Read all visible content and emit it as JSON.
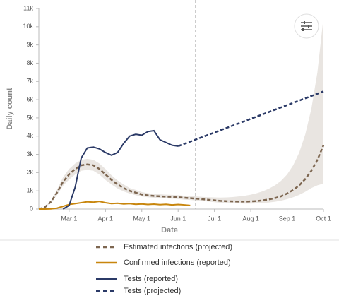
{
  "chart_data": {
    "type": "line",
    "x_label": "Date",
    "y_label": "Daily count",
    "categories": [
      null,
      null,
      null,
      null,
      null,
      "Mar 1",
      null,
      null,
      null,
      null,
      null,
      "Apr 1",
      null,
      null,
      null,
      null,
      null,
      "May 1",
      null,
      null,
      null,
      null,
      null,
      "Jun 1",
      null,
      null,
      null,
      null,
      null,
      "Jul 1",
      null,
      null,
      null,
      null,
      null,
      "Aug 1",
      null,
      null,
      null,
      null,
      null,
      "Sep 1",
      null,
      null,
      null,
      null,
      null,
      "Oct 1"
    ],
    "ylim": [
      0,
      11000
    ],
    "yticks": [
      0,
      {
        "value": 1000,
        "label": "1k"
      },
      {
        "value": 2000,
        "label": "2k"
      },
      {
        "value": 3000,
        "label": "3k"
      },
      {
        "value": 4000,
        "label": "4k"
      },
      {
        "value": 5000,
        "label": "5k"
      },
      {
        "value": 6000,
        "label": "6k"
      },
      {
        "value": 7000,
        "label": "7k"
      },
      {
        "value": 8000,
        "label": "8k"
      },
      {
        "value": 9000,
        "label": "9k"
      },
      {
        "value": 10000,
        "label": "10k"
      },
      {
        "value": 11000,
        "label": "11k"
      }
    ],
    "band": {
      "color": "#e9e5e1",
      "lower": [
        0,
        80,
        340,
        770,
        1280,
        1620,
        1900,
        2100,
        2150,
        2100,
        1900,
        1600,
        1350,
        1130,
        970,
        850,
        760,
        690,
        650,
        620,
        600,
        580,
        570,
        550,
        520,
        500,
        470,
        440,
        410,
        380,
        350,
        330,
        320,
        310,
        300,
        300,
        310,
        330,
        360,
        400,
        460,
        540,
        650,
        780,
        950,
        1150,
        1300,
        1400
      ],
      "upper": [
        0,
        120,
        460,
        1050,
        1750,
        2200,
        2500,
        2700,
        2750,
        2700,
        2500,
        2200,
        1850,
        1570,
        1350,
        1150,
        1050,
        930,
        870,
        830,
        810,
        790,
        780,
        760,
        730,
        710,
        690,
        670,
        650,
        640,
        630,
        640,
        660,
        690,
        730,
        790,
        870,
        980,
        1120,
        1300,
        1550,
        1900,
        2400,
        3100,
        4100,
        5500,
        7500,
        10500
      ]
    },
    "series": [
      {
        "name": "Estimated infections (projected)",
        "color": "#7d6650",
        "dash": true,
        "values": [
          0,
          100,
          400,
          900,
          1500,
          1900,
          2200,
          2400,
          2450,
          2400,
          2200,
          1900,
          1600,
          1350,
          1150,
          1000,
          900,
          800,
          750,
          720,
          700,
          680,
          670,
          650,
          620,
          600,
          570,
          540,
          510,
          480,
          450,
          430,
          420,
          410,
          410,
          420,
          440,
          480,
          530,
          600,
          700,
          850,
          1050,
          1300,
          1650,
          2100,
          2700,
          3500
        ]
      },
      {
        "name": "Confirmed infections (reported)",
        "color": "#c8860d",
        "dash": false,
        "values": [
          0,
          0,
          10,
          50,
          150,
          250,
          300,
          350,
          400,
          380,
          420,
          350,
          300,
          320,
          280,
          300,
          260,
          280,
          250,
          270,
          240,
          260,
          230,
          250,
          230,
          200,
          null,
          null,
          null,
          null,
          null,
          null,
          null,
          null,
          null,
          null,
          null,
          null,
          null,
          null,
          null,
          null,
          null,
          null,
          null,
          null,
          null,
          null
        ]
      },
      {
        "name": "Tests (reported)",
        "color": "#2b3a67",
        "dash": false,
        "values": [
          null,
          null,
          null,
          null,
          0,
          200,
          1200,
          2800,
          3350,
          3400,
          3300,
          3100,
          2950,
          3100,
          3600,
          4000,
          4100,
          4050,
          4250,
          4300,
          3800,
          3650,
          3500,
          3450,
          null,
          null,
          null,
          null,
          null,
          null,
          null,
          null,
          null,
          null,
          null,
          null,
          null,
          null,
          null,
          null,
          null,
          null,
          null,
          null,
          null,
          null,
          null,
          null
        ]
      },
      {
        "name": "Tests (projected)",
        "color": "#2b3a67",
        "dash": true,
        "values": [
          null,
          null,
          null,
          null,
          null,
          null,
          null,
          null,
          null,
          null,
          null,
          null,
          null,
          null,
          null,
          null,
          null,
          null,
          null,
          null,
          null,
          null,
          null,
          3450,
          3575,
          3700,
          3825,
          3950,
          4075,
          4200,
          4325,
          4450,
          4575,
          4700,
          4825,
          4950,
          5075,
          5200,
          5325,
          5450,
          5575,
          5700,
          5825,
          5950,
          6075,
          6200,
          6325,
          6450
        ]
      }
    ]
  }
}
